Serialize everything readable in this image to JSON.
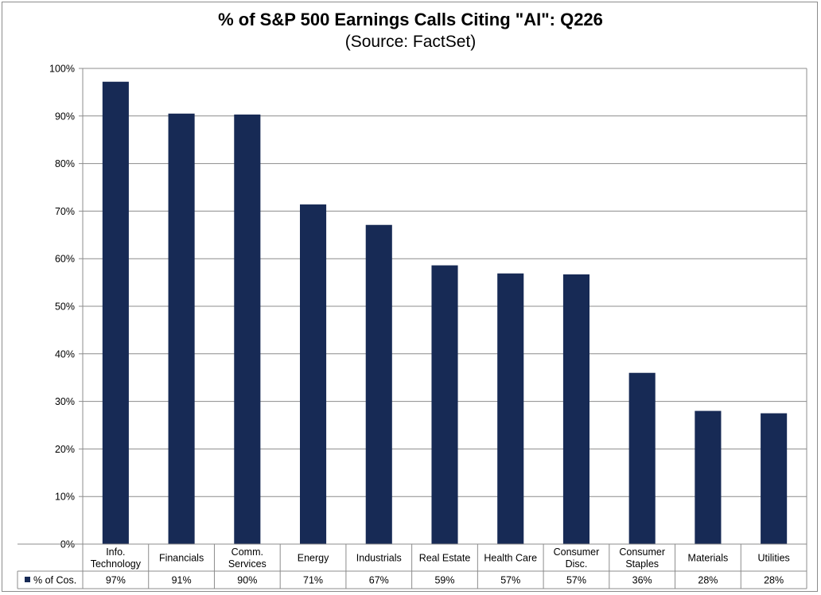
{
  "chart_data": {
    "type": "bar",
    "title": "% of S&P 500 Earnings Calls Citing \"AI\": Q226",
    "subtitle": "(Source: FactSet)",
    "categories": [
      [
        "Info.",
        "Technology"
      ],
      [
        "Financials"
      ],
      [
        "Comm.",
        "Services"
      ],
      [
        "Energy"
      ],
      [
        "Industrials"
      ],
      [
        "Real Estate"
      ],
      [
        "Health Care"
      ],
      [
        "Consumer",
        "Disc."
      ],
      [
        "Consumer",
        "Staples"
      ],
      [
        "Materials"
      ],
      [
        "Utilities"
      ]
    ],
    "series": [
      {
        "name": "% of Cos.",
        "values": [
          97.2,
          90.5,
          90.3,
          71.4,
          67.1,
          58.6,
          56.9,
          56.7,
          36.0,
          28.0,
          27.5
        ],
        "labels": [
          "97%",
          "91%",
          "90%",
          "71%",
          "67%",
          "59%",
          "57%",
          "57%",
          "36%",
          "28%",
          "28%"
        ],
        "color": "#172a55"
      }
    ],
    "yticks": [
      "0%",
      "10%",
      "20%",
      "30%",
      "40%",
      "50%",
      "60%",
      "70%",
      "80%",
      "90%",
      "100%"
    ],
    "ylim": [
      0,
      100
    ],
    "grid": true,
    "legend": "data-table-bottom-left"
  }
}
